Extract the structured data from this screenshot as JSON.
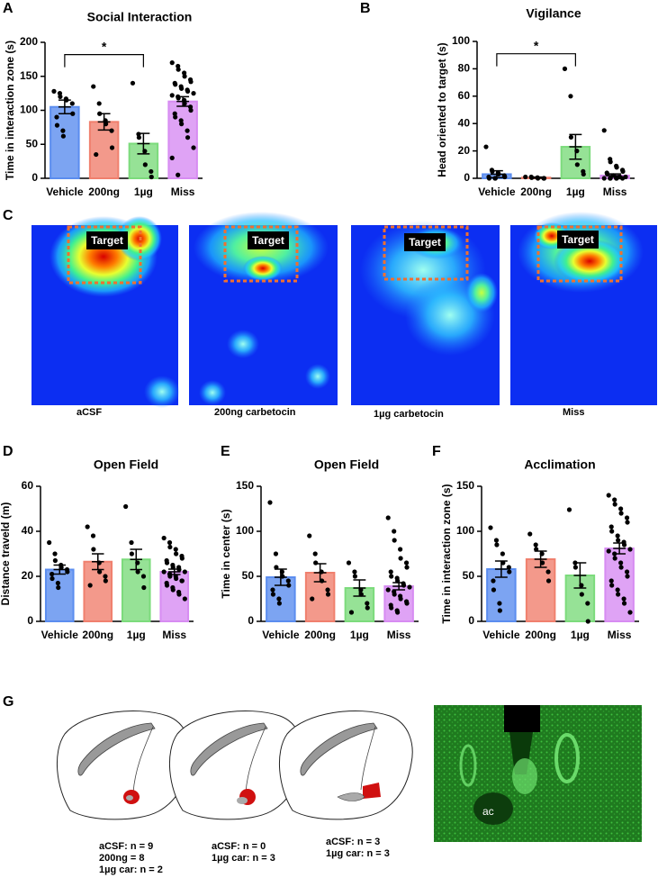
{
  "chart_data": [
    {
      "type": "bar",
      "panel_label": "A",
      "title": "Social Interaction",
      "ylabel": "Time in interaction zone (s)",
      "categories": [
        "Vehicle",
        "200ng",
        "1µg",
        "Miss"
      ],
      "colors": [
        "#5b8def",
        "#f0806e",
        "#7cdb7c",
        "#d78cf2"
      ],
      "values": [
        105,
        83,
        51,
        113
      ],
      "errors": [
        10,
        12,
        15,
        7
      ],
      "points": [
        [
          128,
          125,
          120,
          117,
          115,
          110,
          95,
          90,
          78,
          70,
          62
        ],
        [
          135,
          110,
          95,
          85,
          80,
          70,
          45,
          35
        ],
        [
          140,
          65,
          60,
          40,
          20,
          10,
          2
        ],
        [
          170,
          165,
          160,
          155,
          150,
          145,
          142,
          140,
          138,
          135,
          132,
          130,
          128,
          125,
          122,
          120,
          118,
          115,
          110,
          105,
          100,
          95,
          90,
          85,
          80,
          70,
          60,
          45,
          30,
          5
        ]
      ],
      "ylim": [
        0,
        200
      ],
      "yticks": [
        0,
        50,
        100,
        150,
        200
      ],
      "significance": [
        {
          "label": "*",
          "between": [
            "Vehicle",
            "1µg"
          ]
        }
      ]
    },
    {
      "type": "bar",
      "panel_label": "B",
      "title": "Vigilance",
      "ylabel": "Head oriented to target (s)",
      "categories": [
        "Vehicle",
        "200ng",
        "1µg",
        "Miss"
      ],
      "colors": [
        "#5b8def",
        "#f0806e",
        "#7cdb7c",
        "#d78cf2"
      ],
      "values": [
        3,
        0.5,
        23,
        2
      ],
      "errors": [
        2.5,
        0.4,
        9,
        1.2
      ],
      "points": [
        [
          23,
          6,
          5,
          4,
          3,
          2,
          1,
          1,
          0,
          0,
          0
        ],
        [
          1,
          1,
          0.5,
          0.5,
          0,
          0,
          0
        ],
        [
          80,
          60,
          30,
          20,
          10,
          5,
          3
        ],
        [
          35,
          14,
          12,
          9,
          8,
          6,
          5,
          4,
          3,
          2,
          2,
          1,
          1,
          1,
          0,
          0,
          0,
          0,
          0,
          0
        ]
      ],
      "ylim": [
        0,
        100
      ],
      "yticks": [
        0,
        20,
        40,
        60,
        80,
        100
      ],
      "significance": [
        {
          "label": "*",
          "between": [
            "Vehicle",
            "1µg"
          ]
        }
      ]
    },
    {
      "type": "bar",
      "panel_label": "D",
      "title": "Open Field",
      "ylabel": "Distance traveld (m)",
      "categories": [
        "Vehicle",
        "200ng",
        "1µg",
        "Miss"
      ],
      "colors": [
        "#5b8def",
        "#f0806e",
        "#7cdb7c",
        "#d78cf2"
      ],
      "values": [
        23,
        26.5,
        27.5,
        22
      ],
      "errors": [
        2,
        3.5,
        4.5,
        1.2
      ],
      "points": [
        [
          35,
          30,
          27,
          25,
          24,
          23,
          22,
          21,
          19,
          17,
          15
        ],
        [
          42,
          38,
          32,
          26,
          22,
          20,
          18,
          16
        ],
        [
          51,
          35,
          30,
          26,
          22,
          20,
          15
        ],
        [
          37,
          35,
          33,
          32,
          30,
          29,
          28,
          27,
          26,
          25,
          24,
          24,
          23,
          22,
          22,
          21,
          20,
          20,
          19,
          18,
          18,
          17,
          16,
          15,
          14,
          13,
          12,
          10
        ]
      ],
      "ylim": [
        0,
        60
      ],
      "yticks": [
        0,
        20,
        40,
        60
      ]
    },
    {
      "type": "bar",
      "panel_label": "E",
      "title": "Open Field",
      "ylabel": "Time in center (s)",
      "categories": [
        "Vehicle",
        "200ng",
        "1µg",
        "Miss"
      ],
      "colors": [
        "#5b8def",
        "#f0806e",
        "#7cdb7c",
        "#d78cf2"
      ],
      "values": [
        49,
        54,
        37,
        39
      ],
      "errors": [
        9,
        10,
        9,
        4
      ],
      "points": [
        [
          132,
          75,
          60,
          55,
          50,
          45,
          40,
          35,
          30,
          25,
          20
        ],
        [
          95,
          75,
          65,
          55,
          45,
          35,
          30,
          25
        ],
        [
          65,
          55,
          50,
          35,
          30,
          20,
          15,
          10
        ],
        [
          115,
          100,
          90,
          80,
          70,
          65,
          60,
          55,
          50,
          48,
          45,
          42,
          40,
          38,
          35,
          33,
          30,
          28,
          25,
          22,
          20,
          18,
          15,
          12,
          10
        ]
      ],
      "ylim": [
        0,
        150
      ],
      "yticks": [
        0,
        50,
        100,
        150
      ]
    },
    {
      "type": "bar",
      "panel_label": "F",
      "title": "Acclimation",
      "ylabel": "Time in interaction zone (s)",
      "categories": [
        "Vehicle",
        "200ng",
        "1µg",
        "Miss"
      ],
      "colors": [
        "#5b8def",
        "#f0806e",
        "#7cdb7c",
        "#d78cf2"
      ],
      "values": [
        58,
        69,
        51,
        81
      ],
      "errors": [
        9,
        9,
        14,
        6
      ],
      "points": [
        [
          104,
          90,
          85,
          75,
          65,
          60,
          55,
          45,
          35,
          20,
          12
        ],
        [
          97,
          85,
          80,
          75,
          65,
          55,
          45
        ],
        [
          124,
          65,
          60,
          40,
          30,
          20,
          0
        ],
        [
          140,
          135,
          130,
          125,
          120,
          115,
          110,
          105,
          100,
          95,
          90,
          88,
          85,
          80,
          78,
          75,
          70,
          65,
          60,
          55,
          50,
          45,
          40,
          35,
          30,
          25,
          20,
          10
        ]
      ],
      "ylim": [
        0,
        150
      ],
      "yticks": [
        0,
        50,
        100,
        150
      ]
    }
  ],
  "heatmap_panel": {
    "panel_label": "C",
    "maps": [
      {
        "caption": "aCSF",
        "target_label": "Target"
      },
      {
        "caption": "200ng carbetocin",
        "target_label": "Target"
      },
      {
        "caption": "1µg carbetocin",
        "target_label": "Target"
      },
      {
        "caption": "Miss",
        "target_label": "Target"
      }
    ]
  },
  "histology_panel": {
    "panel_label": "G",
    "sections": [
      {
        "counts": [
          "aCSF: n = 9",
          "200ng = 8",
          "1µg car: n = 2"
        ]
      },
      {
        "counts": [
          "aCSF: n = 0",
          "1µg car: n = 3"
        ]
      },
      {
        "counts": [
          "aCSF: n = 3",
          "1µg car: n = 3"
        ]
      }
    ],
    "micrograph_label": "ac"
  }
}
